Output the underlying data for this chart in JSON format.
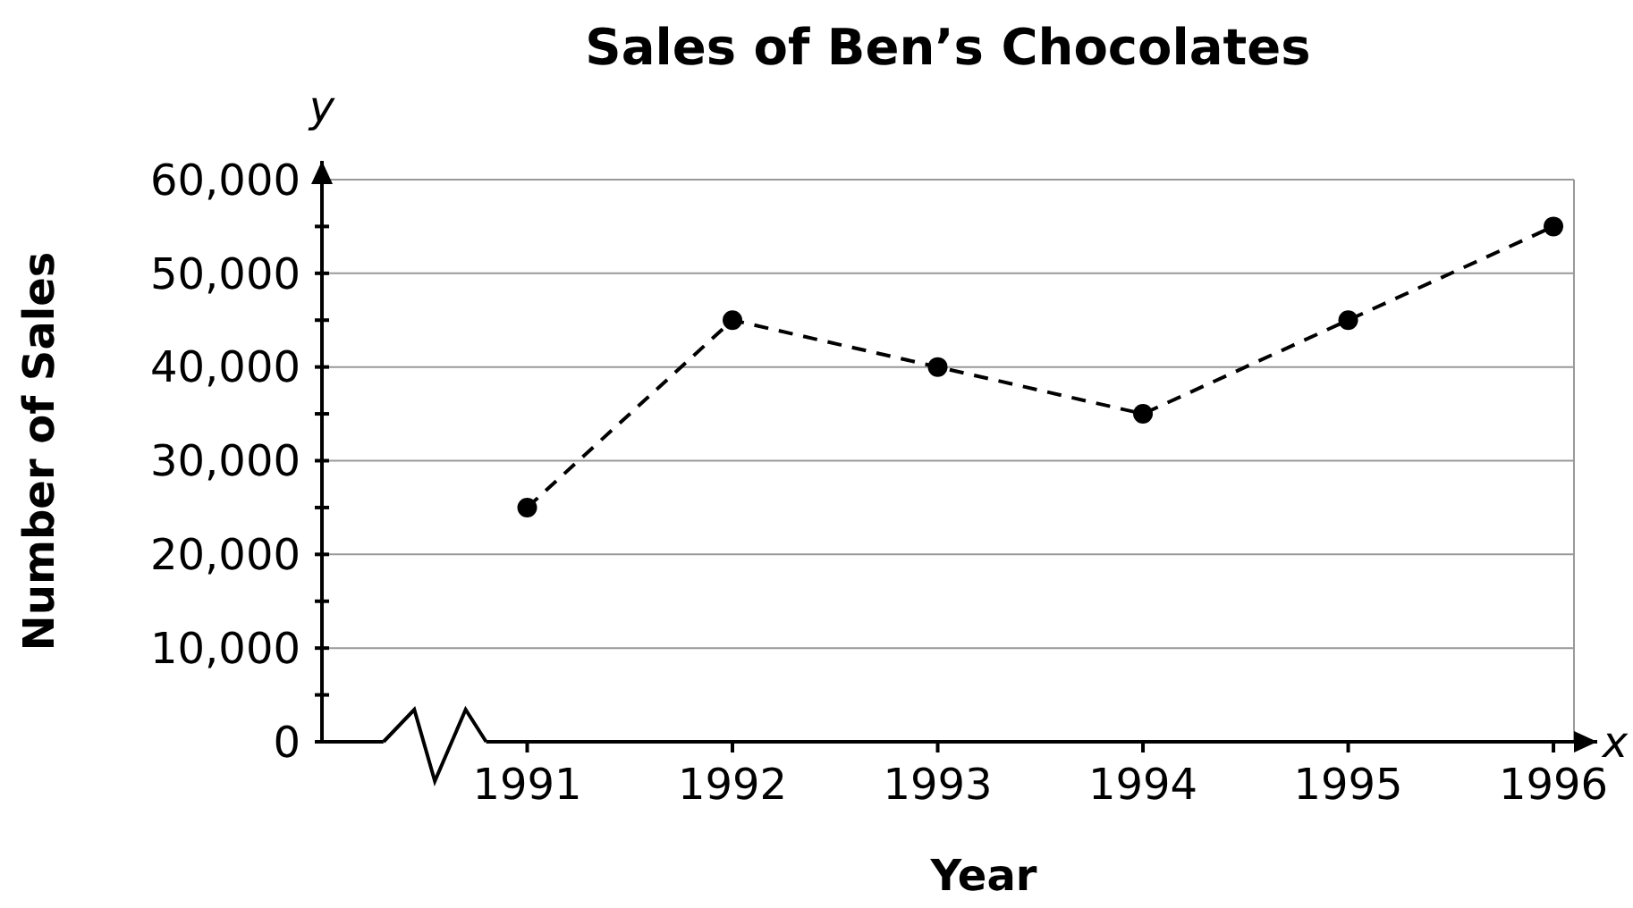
{
  "chart_data": {
    "type": "line",
    "title": "Sales of Ben’s Chocolates",
    "xlabel": "Year",
    "ylabel": "Number of Sales",
    "annotations": [
      "y",
      "x"
    ],
    "x": [
      1991,
      1992,
      1993,
      1994,
      1995,
      1996
    ],
    "series": [
      {
        "color": "#000000",
        "values": [
          25000,
          45000,
          40000,
          35000,
          45000,
          55000
        ]
      }
    ],
    "xlim": [
      1990,
      1996.1
    ],
    "xticks": [
      1991,
      1992,
      1993,
      1994,
      1995,
      1996
    ],
    "ylim": [
      0,
      62000
    ],
    "yticks": [
      {
        "value": 0,
        "label": "0"
      },
      {
        "value": 5000,
        "label": null
      },
      {
        "value": 10000,
        "label": "10,000"
      },
      {
        "value": 15000,
        "label": null
      },
      {
        "value": 20000,
        "label": "20,000"
      },
      {
        "value": 25000,
        "label": null
      },
      {
        "value": 30000,
        "label": "30,000"
      },
      {
        "value": 35000,
        "label": null
      },
      {
        "value": 40000,
        "label": "40,000"
      },
      {
        "value": 45000,
        "label": null
      },
      {
        "value": 50000,
        "label": "50,000"
      },
      {
        "value": 55000,
        "label": null
      },
      {
        "value": 60000,
        "label": "60,000"
      }
    ],
    "grid": "y",
    "marker": "circle",
    "line_style": "dashed"
  }
}
